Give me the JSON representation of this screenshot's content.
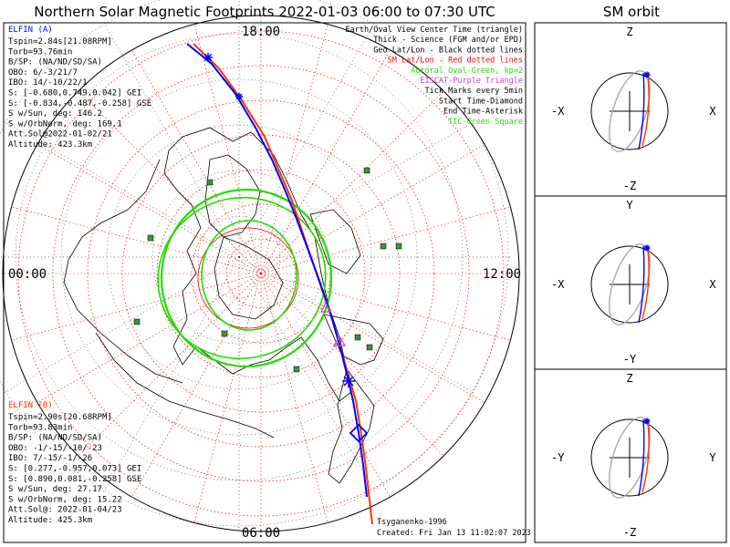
{
  "title": "Northern Solar Magnetic Footprints 2022-01-03 06:00 to 07:30 UTC",
  "sm_orbit_title": "SM orbit",
  "colors": {
    "elfin_a": "#0000ff",
    "elfin_b": "#ff3300",
    "oval": "#22dd00",
    "sm_grid": "#ff0000",
    "geo_grid": "#000000",
    "eiscat": "#cc44cc",
    "orbit_gray": "#aaaaaa"
  },
  "map": {
    "mlt_labels": {
      "top": "18:00",
      "right": "12:00",
      "bottom": "06:00",
      "left": "00:00"
    }
  },
  "elfin_a": {
    "title": "ELFIN (A)",
    "lines": [
      "Tspin=2.84s[21.08RPM]",
      "Torb=93.76min",
      "B/SP: (NA/ND/SD/SA)",
      "OBO: 6/-3/21/7",
      "IBO: 14/-10/22/1",
      "S: [-0.680,0.749,0.042] GEI",
      "S: [-0.834,-0.487,-0.258] GSE",
      "S w/Sun, deg: 146.2",
      "S w/OrbNorm, deg: 169.1",
      "Att.Sol@2022-01-02/21",
      "Altitude: 423.3km"
    ]
  },
  "elfin_b": {
    "title": "ELFIN (B)",
    "lines": [
      "Tspin=2.90s[20.68RPM]",
      "Torb=93.83min",
      "B/SP: (NA/ND/SD/SA)",
      "OBO: -1/-15/-10/-23",
      "IBO: 7/-15/-1/-26",
      "S: [0.277,-0.957,0.073] GEI",
      "S: [0.890,0.081,-0.258] GSE",
      "S w/Sun, deg: 27.17",
      "S w/OrbNorm, deg: 15.22",
      "Att.Sol@: 2022-01-04/23",
      "Altitude: 425.3km"
    ]
  },
  "legend": [
    {
      "text": "Earth/Oval View Center Time (triangle)",
      "color": "#000000"
    },
    {
      "text": "Thick - Science (FGM and/or EPD)",
      "color": "#000000"
    },
    {
      "text": "Geo Lat/Lon - Black dotted lines",
      "color": "#000000"
    },
    {
      "text": "SM Lat/Lon - Red dotted lines",
      "color": "#ff0000"
    },
    {
      "text": "Auroral Oval-Green, kp=2",
      "color": "#22dd00"
    },
    {
      "text": "EISCAT-Purple Triangle",
      "color": "#cc44cc"
    },
    {
      "text": "Tick Marks every 5min",
      "color": "#000000"
    },
    {
      "text": "Start Time-Diamond",
      "color": "#000000"
    },
    {
      "text": "End Time-Asterisk",
      "color": "#000000"
    },
    {
      "text": "TIC-Green Square",
      "color": "#22dd00"
    }
  ],
  "credits": {
    "author": "Tsyganenko-1996",
    "created": "Created: Fri Jan 13 11:02:07 2023"
  },
  "sm_panels": [
    {
      "top": "Z",
      "bottom": "-Z",
      "left": "-X",
      "right": "X"
    },
    {
      "top": "Y",
      "bottom": "-Y",
      "left": "-X",
      "right": "X"
    },
    {
      "top": "Z",
      "bottom": "-Z",
      "left": "-Y",
      "right": "Y"
    }
  ],
  "chart_data": {
    "type": "scatter",
    "title": "Northern Solar Magnetic Footprints 2022-01-03 06:00 to 07:30 UTC",
    "projection": "polar, SM coordinates, MLT labels around edge",
    "series": [
      {
        "name": "ELFIN (A)",
        "color": "#0000ff"
      },
      {
        "name": "ELFIN (B)",
        "color": "#ff3300"
      }
    ],
    "oval": "Auroral Oval-Green, kp=2"
  }
}
